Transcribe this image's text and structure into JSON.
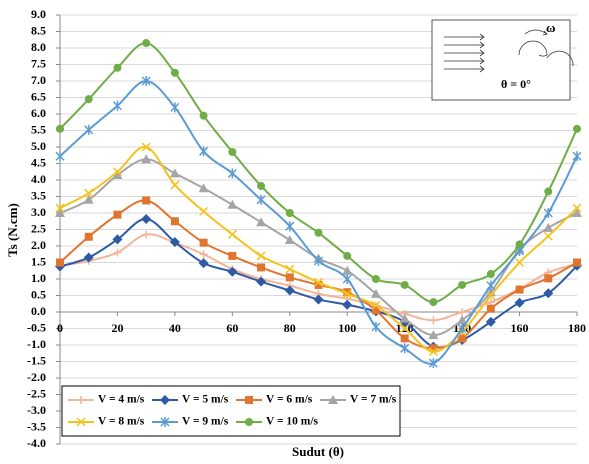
{
  "chart_data": {
    "type": "line",
    "y_label": "Ts  (N.cm)",
    "x_label": "Sudut (θ)",
    "annotations": [
      "ω",
      "θ = 0°"
    ],
    "x": [
      0,
      10,
      20,
      30,
      40,
      50,
      60,
      70,
      80,
      90,
      100,
      110,
      120,
      130,
      140,
      150,
      160,
      170,
      180
    ],
    "xlim": [
      0,
      180
    ],
    "xticks": [
      0,
      20,
      40,
      60,
      80,
      100,
      120,
      140,
      160,
      180
    ],
    "ylim": [
      -4,
      9
    ],
    "yticks": [
      {
        "value": 9,
        "label": "9.0"
      },
      {
        "value": 8.5,
        "label": "8.5"
      },
      {
        "value": 8,
        "label": "8.0"
      },
      {
        "value": 7.5,
        "label": "7.5"
      },
      {
        "value": 7,
        "label": "7.0"
      },
      {
        "value": 6.5,
        "label": "6.5"
      },
      {
        "value": 6,
        "label": "6.0"
      },
      {
        "value": 5.5,
        "label": "5.5"
      },
      {
        "value": 5,
        "label": "5.0"
      },
      {
        "value": 4.5,
        "label": "4.5"
      },
      {
        "value": 4,
        "label": "4.0"
      },
      {
        "value": 3.5,
        "label": "3.5"
      },
      {
        "value": 3,
        "label": "3.0"
      },
      {
        "value": 2.5,
        "label": "2.5"
      },
      {
        "value": 2,
        "label": "2.0"
      },
      {
        "value": 1.5,
        "label": "1.5"
      },
      {
        "value": 1,
        "label": "1.0"
      },
      {
        "value": 0.5,
        "label": "0.5"
      },
      {
        "value": 0,
        "label": "0.0"
      },
      {
        "value": -0.5,
        "label": "-0.5"
      },
      {
        "value": -1,
        "label": "-1.0"
      },
      {
        "value": -1.5,
        "label": "-1.5"
      },
      {
        "value": -2,
        "label": "-2.0"
      },
      {
        "value": -2.5,
        "label": "-2.5"
      },
      {
        "value": -3,
        "label": "-3.0"
      },
      {
        "value": -3.5,
        "label": "-3.5"
      },
      {
        "value": -4,
        "label": "-4.0"
      }
    ],
    "grid": true,
    "legend_position": "bottom-left",
    "series": [
      {
        "name": "V = 4 m/s",
        "color": "#f4b49a",
        "marker": "plus",
        "values": [
          1.4,
          1.55,
          1.8,
          2.35,
          2.1,
          1.75,
          1.3,
          1.0,
          0.8,
          0.55,
          0.4,
          0.2,
          -0.05,
          -0.25,
          0.0,
          0.3,
          0.7,
          1.2,
          1.45
        ]
      },
      {
        "name": "V = 5 m/s",
        "color": "#2e5aa6",
        "marker": "diamond",
        "values": [
          1.38,
          1.65,
          2.2,
          2.82,
          2.12,
          1.48,
          1.22,
          0.92,
          0.65,
          0.38,
          0.22,
          0.02,
          -0.3,
          -1.05,
          -0.85,
          -0.3,
          0.28,
          0.57,
          1.4
        ]
      },
      {
        "name": "V = 6 m/s",
        "color": "#e07530",
        "marker": "square",
        "values": [
          1.5,
          2.28,
          2.95,
          3.38,
          2.75,
          2.1,
          1.7,
          1.35,
          1.05,
          0.82,
          0.6,
          0.05,
          -0.8,
          -1.1,
          -0.8,
          0.1,
          0.68,
          1.02,
          1.5
        ]
      },
      {
        "name": "V = 7 m/s",
        "color": "#a5a5a5",
        "marker": "triangle",
        "values": [
          3.0,
          3.4,
          4.15,
          4.63,
          4.2,
          3.75,
          3.25,
          2.72,
          2.18,
          1.62,
          1.25,
          0.55,
          -0.2,
          -0.7,
          -0.25,
          0.6,
          1.9,
          2.55,
          3.0
        ]
      },
      {
        "name": "V = 8 m/s",
        "color": "#f5c21b",
        "marker": "x",
        "values": [
          3.15,
          3.6,
          4.25,
          5.0,
          3.85,
          3.05,
          2.35,
          1.7,
          1.3,
          0.9,
          0.55,
          0.2,
          -0.5,
          -1.2,
          -0.6,
          0.5,
          1.5,
          2.3,
          3.15
        ]
      },
      {
        "name": "V = 9 m/s",
        "color": "#5b9bd5",
        "marker": "star",
        "values": [
          4.72,
          5.52,
          6.25,
          7.0,
          6.2,
          4.87,
          4.2,
          3.4,
          2.6,
          1.55,
          1.0,
          -0.45,
          -1.1,
          -1.55,
          -0.5,
          0.8,
          1.85,
          3.0,
          4.72
        ]
      },
      {
        "name": "V = 10 m/s",
        "color": "#70ad47",
        "marker": "circle",
        "values": [
          5.55,
          6.45,
          7.4,
          8.15,
          7.25,
          5.95,
          4.85,
          3.82,
          3.0,
          2.4,
          1.7,
          1.0,
          0.82,
          0.3,
          0.82,
          1.15,
          2.05,
          3.65,
          5.55
        ]
      }
    ]
  }
}
